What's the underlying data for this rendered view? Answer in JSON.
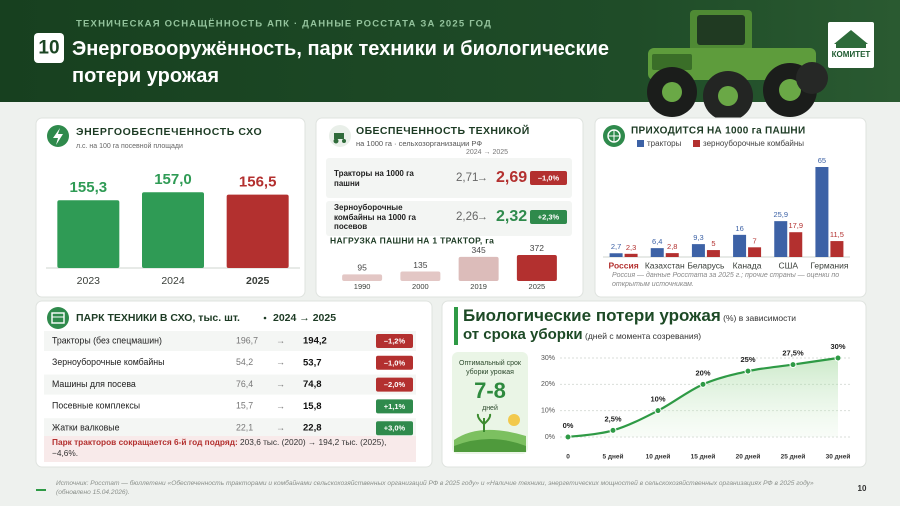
{
  "header": {
    "kicker": "ТЕХНИЧЕСКАЯ ОСНАЩЁННОСТЬ АПК · ДАННЫЕ РОССТАТА  ЗА 2025 ГОД",
    "number": "10",
    "title": "Энерговооружённость, парк техники и биологические потери урожая",
    "logo": "КОМИТЕТ"
  },
  "equipment": {
    "title": "ОБЕСПЕЧЕННОСТЬ ТЕХНИКОЙ",
    "subtitle": "на 1000 га · сельхозорганизации РФ",
    "period": "2024 → 2025",
    "arrow": "→",
    "rows": [
      {
        "label": "Тракторы на 1000 га пашни",
        "from": "2,71",
        "to": "2,69",
        "change": "–1,0%"
      },
      {
        "label": "Зерноуборочные комбайны на 1000 га посевов",
        "from": "2,26",
        "to": "2,32",
        "change": "+2,3%"
      }
    ]
  },
  "fleet": {
    "title": "ПАРК ТЕХНИКИ В СХО, тыс. шт.",
    "period": "2024 → 2025",
    "arrow": "→",
    "rows": [
      {
        "label": "Тракторы (без спецмашин)",
        "from": "196,7",
        "to": "194,2",
        "change": "–1,2%"
      },
      {
        "label": "Зерноуборочные комбайны",
        "from": "54,2",
        "to": "53,7",
        "change": "–1,0%"
      },
      {
        "label": "Машины для посева",
        "from": "76,4",
        "to": "74,8",
        "change": "–2,0%"
      },
      {
        "label": "Посевные комплексы",
        "from": "15,7",
        "to": "15,8",
        "change": "+1,1%"
      },
      {
        "label": "Жатки валковые",
        "from": "22,1",
        "to": "22,8",
        "change": "+3,0%"
      }
    ],
    "note_lead": "Парк тракторов сокращается 6-й год подряд:",
    "note_rest": " 203,6 тыс. (2020) → 194,2 тыс. (2025), −4,6%."
  },
  "losses": {
    "title": "Биологические потери урожая",
    "title_unit": " (%) в зависимости",
    "title_line2": "от срока уборки",
    "title_note": " (дней с момента созревания)",
    "card": {
      "title": "Оптимальный срок уборки урожая",
      "value": "7-8",
      "unit": "дней"
    }
  },
  "footer": {
    "source": "Источник: Росстат — бюллетени «Обеспеченность тракторами и комбайнами сельскохозяйственных организаций РФ в 2025 году» и «Наличие техники, энергетических мощностей в сельскохозяйственных организациях РФ в 2025 году» (обновлено 15.04.2026).",
    "page": "10"
  },
  "chart_data": [
    {
      "type": "bar",
      "title": "ЭНЕРГООБЕСПЕЧЕННОСТЬ СХО",
      "subtitle": "л.с. на 100 га посевной площади",
      "categories": [
        "2023",
        "2024",
        "2025"
      ],
      "values": [
        155.3,
        157.0,
        156.5
      ],
      "value_labels": [
        "155,3",
        "157,0",
        "156,5"
      ],
      "colors": [
        "#2f9b55",
        "#2f9b55",
        "#b3302f"
      ],
      "ylim": [
        141,
        160
      ]
    },
    {
      "type": "bar",
      "title": "НАГРУЗКА ПАШНИ НА 1 ТРАКТОР, га",
      "categories": [
        "1990",
        "2000",
        "2019",
        "2025"
      ],
      "values": [
        95,
        135,
        345,
        372
      ],
      "colors": [
        "#e3c7c5",
        "#e3c7c5",
        "#dcbcba",
        "#b3302f"
      ],
      "ylim": [
        0,
        400
      ]
    },
    {
      "type": "bar",
      "title": "ПРИХОДИТСЯ НА 1000 га ПАШНИ",
      "note": "Россия — данные Росстата за 2025 г.; прочие страны — оценки по открытым источникам.",
      "categories": [
        "Россия",
        "Казахстан",
        "Беларусь",
        "Канада",
        "США",
        "Германия"
      ],
      "series": [
        {
          "name": "тракторы",
          "color": "#3d62a6",
          "values": [
            2.7,
            6.4,
            9.3,
            16,
            25.9,
            65
          ],
          "value_labels": [
            "2,7",
            "6,4",
            "9,3",
            "16",
            "25,9",
            "65"
          ]
        },
        {
          "name": "зерноуборочные комбайны",
          "color": "#b3302f",
          "values": [
            2.3,
            2.8,
            5,
            7,
            17.9,
            11.5
          ],
          "value_labels": [
            "2,3",
            "2,8",
            "5",
            "7",
            "17,9",
            "11,5"
          ]
        }
      ],
      "ylim": [
        0,
        65
      ]
    },
    {
      "type": "line",
      "x": [
        0,
        5,
        10,
        15,
        20,
        25,
        30
      ],
      "values": [
        0,
        2.5,
        10,
        20,
        25,
        27.5,
        30
      ],
      "value_labels": [
        "0%",
        "2,5%",
        "10%",
        "20%",
        "25%",
        "27,5%",
        "30%"
      ],
      "color": "#2e9a45",
      "xlim": [
        0,
        30
      ],
      "ylim": [
        0,
        30
      ],
      "xticks": [
        0,
        {
          "value": 5,
          "label": "5 дней"
        },
        {
          "value": 10,
          "label": "10 дней"
        },
        {
          "value": 15,
          "label": "15 дней"
        },
        {
          "value": 20,
          "label": "20 дней"
        },
        {
          "value": 25,
          "label": "25 дней"
        },
        {
          "value": 30,
          "label": "30 дней"
        }
      ],
      "yticks": [
        {
          "value": 0,
          "label": "0%"
        },
        {
          "value": 10,
          "label": "10%"
        },
        {
          "value": 20,
          "label": "20%"
        },
        {
          "value": 30,
          "label": "30%"
        }
      ],
      "grid": true
    }
  ]
}
